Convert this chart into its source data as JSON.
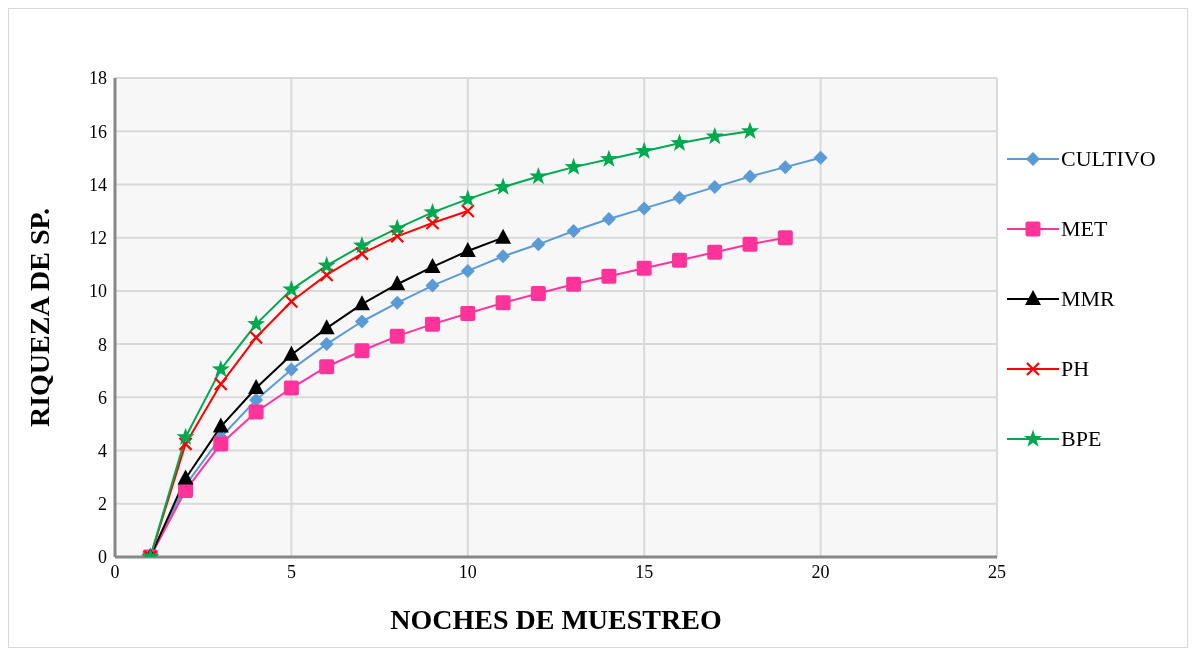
{
  "chart_data": {
    "type": "line",
    "xlabel": "NOCHES DE MUESTREO",
    "ylabel": "RIQUEZA DE SP.",
    "xlim": [
      0,
      25
    ],
    "xticks": [
      0,
      5,
      10,
      15,
      20,
      25
    ],
    "ylim": [
      0,
      18
    ],
    "yticks": [
      0,
      2,
      4,
      6,
      8,
      10,
      12,
      14,
      16,
      18
    ],
    "grid": true,
    "legend": "right",
    "line_style": "solid",
    "series": [
      {
        "name": "CULTIVO",
        "color": "#5b9bd5",
        "marker": "diamond",
        "x": [
          1,
          2,
          3,
          4,
          5,
          6,
          7,
          8,
          9,
          10,
          11,
          12,
          13,
          14,
          15,
          16,
          17,
          18,
          19,
          20
        ],
        "values": [
          0,
          2.7,
          4.5,
          5.9,
          7.05,
          8,
          8.85,
          9.55,
          10.2,
          10.75,
          11.3,
          11.75,
          12.25,
          12.7,
          13.1,
          13.5,
          13.9,
          14.3,
          14.65,
          15
        ]
      },
      {
        "name": "MET",
        "color": "#ff3399",
        "marker": "square",
        "x": [
          1,
          2,
          3,
          4,
          5,
          6,
          7,
          8,
          9,
          10,
          11,
          12,
          13,
          14,
          15,
          16,
          17,
          18,
          19
        ],
        "values": [
          0,
          2.5,
          4.25,
          5.45,
          6.35,
          7.15,
          7.75,
          8.3,
          8.75,
          9.15,
          9.55,
          9.9,
          10.25,
          10.55,
          10.85,
          11.15,
          11.45,
          11.75,
          12
        ]
      },
      {
        "name": "MMR",
        "color": "#000000",
        "marker": "triangle",
        "x": [
          1,
          2,
          3,
          4,
          5,
          6,
          7,
          8,
          9,
          10,
          11
        ],
        "values": [
          0,
          2.95,
          4.9,
          6.35,
          7.6,
          8.6,
          9.5,
          10.25,
          10.9,
          11.5,
          12
        ]
      },
      {
        "name": "PH",
        "color": "#ff0000",
        "marker": "cross",
        "x": [
          1,
          2,
          3,
          4,
          5,
          6,
          7,
          8,
          9,
          10
        ],
        "values": [
          0,
          4.25,
          6.5,
          8.25,
          9.6,
          10.6,
          11.4,
          12.05,
          12.55,
          13
        ]
      },
      {
        "name": "BPE",
        "color": "#00a84f",
        "marker": "star",
        "x": [
          1,
          2,
          3,
          4,
          5,
          6,
          7,
          8,
          9,
          10,
          11,
          12,
          13,
          14,
          15,
          16,
          17,
          18
        ],
        "values": [
          0,
          4.5,
          7.05,
          8.75,
          10.05,
          10.95,
          11.7,
          12.35,
          12.95,
          13.45,
          13.9,
          14.3,
          14.65,
          14.95,
          15.25,
          15.55,
          15.8,
          16
        ]
      }
    ]
  }
}
